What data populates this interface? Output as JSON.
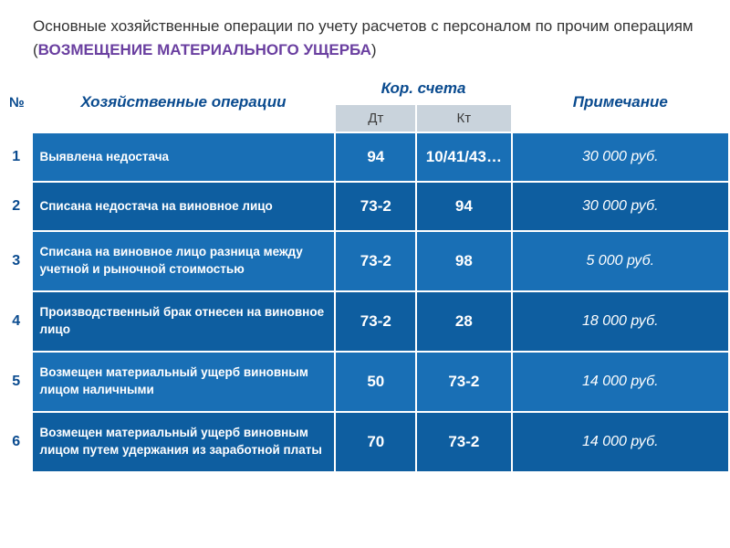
{
  "title": {
    "prefix": "Основные хозяйственные операции по учету расчетов с персоналом по прочим операциям (",
    "highlight": "ВОЗМЕЩЕНИЕ МАТЕРИАЛЬНОГО УЩЕРБА",
    "suffix": ")"
  },
  "table": {
    "columns": [
      "Хозяйственные операции",
      "Кор. счета",
      "Примечание"
    ],
    "num_symbol": "№",
    "sub_columns": [
      "Дт",
      "Кт"
    ],
    "rows": [
      {
        "n": "1",
        "op": "Выявлена недостача",
        "dt": "94",
        "kt": "10/41/43…",
        "note": "30 000 руб.",
        "tall": false
      },
      {
        "n": "2",
        "op": "Списана недостача на виновное лицо",
        "dt": "73-2",
        "kt": "94",
        "note": "30 000 руб.",
        "tall": false
      },
      {
        "n": "3",
        "op": "Списана на виновное лицо разница между учетной и рыночной стоимостью",
        "dt": "73-2",
        "kt": "98",
        "note": "5 000 руб.",
        "tall": true
      },
      {
        "n": "4",
        "op": "Производственный брак отнесен на виновное лицо",
        "dt": "73-2",
        "kt": "28",
        "note": "18 000 руб.",
        "tall": true
      },
      {
        "n": "5",
        "op": "Возмещен материальный ущерб виновным лицом наличными",
        "dt": "50",
        "kt": "73-2",
        "note": "14 000 руб.",
        "tall": true
      },
      {
        "n": "6",
        "op": "Возмещен материальный ущерб виновным лицом путем удержания из заработной платы",
        "dt": "70",
        "kt": "73-2",
        "note": "14 000 руб.",
        "tall": true
      }
    ],
    "colors": {
      "row_light": "#196fb5",
      "row_dark": "#0e5ea0",
      "header_sub_bg": "#c9d3dc",
      "accent_text": "#0a4b8f",
      "highlight_text": "#6a3fa0"
    }
  }
}
